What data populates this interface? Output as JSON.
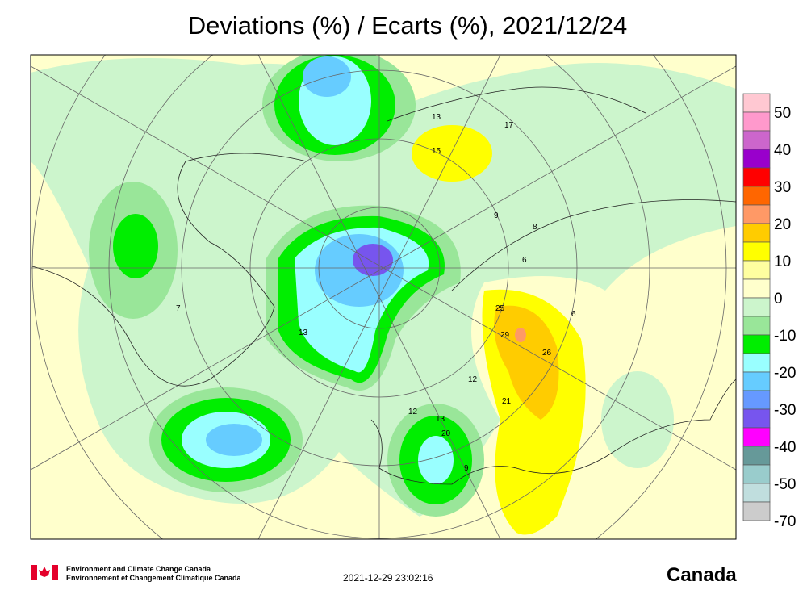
{
  "header": {
    "title": "Deviations (%) / Ecarts (%), 2021/12/24"
  },
  "legend": {
    "boxes": [
      "#ffc8d2",
      "#ff99cc",
      "#cc66cc",
      "#9900cc",
      "#ff0000",
      "#ff6600",
      "#ff9966",
      "#ffcc00",
      "#ffff00",
      "#ffffa0",
      "#ffffcc",
      "#ccf5cc",
      "#99e699",
      "#00ee00",
      "#99ffff",
      "#66ccff",
      "#6699ff",
      "#7755ee",
      "#ff00ff",
      "#669999",
      "#99cccc",
      "#c0dede",
      "#cccccc"
    ],
    "labels": [
      "50",
      "40",
      "30",
      "20",
      "10",
      "0",
      "-10",
      "-20",
      "-30",
      "-40",
      "-50",
      "-70"
    ]
  },
  "stations": [
    "13",
    "15",
    "17",
    "8",
    "6",
    "9",
    "7",
    "13",
    "25",
    "29",
    "26",
    "21",
    "12",
    "12",
    "13",
    "20",
    "9",
    "6"
  ],
  "footer": {
    "agency_en": "Environment and Climate Change Canada",
    "agency_fr": "Environnement et Changement Climatique Canada",
    "timestamp": "2021-12-29 23:02:16",
    "wordmark": "Canada"
  }
}
